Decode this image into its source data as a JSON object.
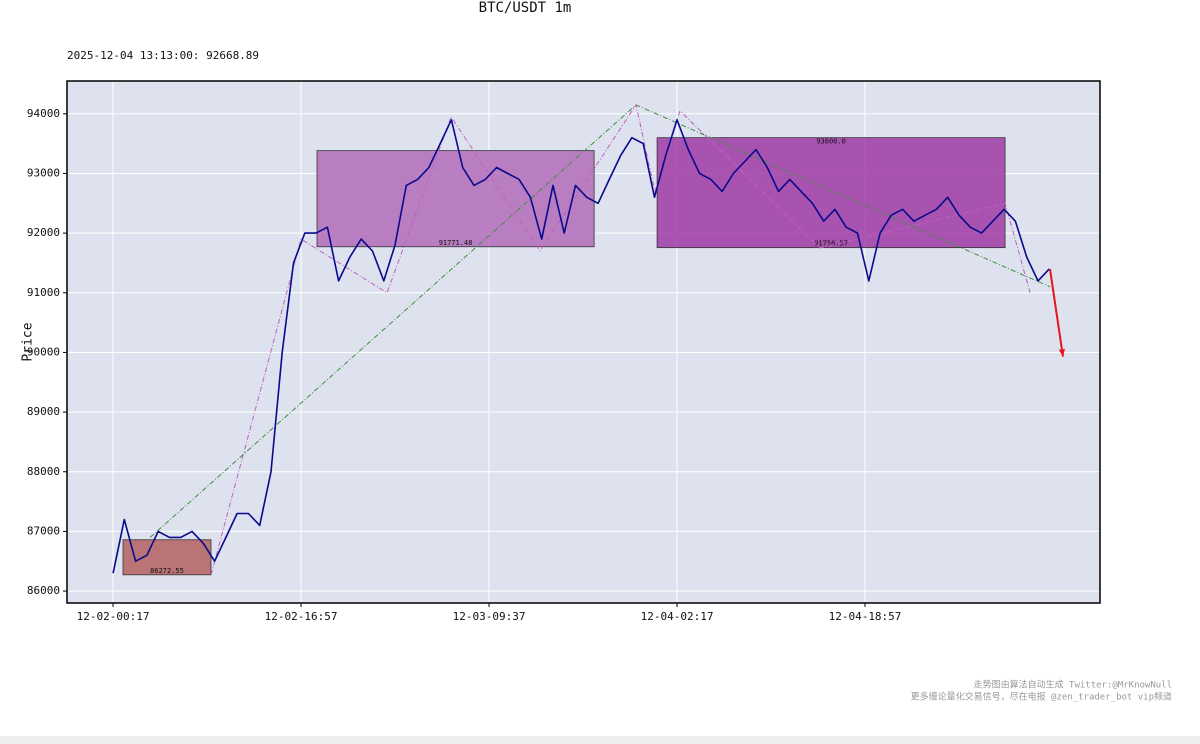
{
  "chart_data": {
    "type": "line",
    "title": "BTC/USDT 1m",
    "subtitle": "2025-12-04 13:13:00: 92668.89",
    "ylabel": "Price",
    "annotations": [
      "走势图由算法自动生成  Twitter:@MrKnowNull",
      "更多缠论量化交易信号，尽在电报 @zen_trader_bot vip频道"
    ],
    "xlim": [
      "12-01-20:12",
      "12-05-15:47"
    ],
    "xticks": [
      "12-02-00:17",
      "12-02-16:57",
      "12-03-09:37",
      "12-04-02:17",
      "12-04-18:57"
    ],
    "ylim": [
      85800,
      94550
    ],
    "yticks": [
      86000,
      87000,
      88000,
      89000,
      90000,
      91000,
      92000,
      93000,
      94000
    ],
    "grid": true,
    "x": [
      "12-02-00:17",
      "12-02-01:17",
      "12-02-02:17",
      "12-02-03:17",
      "12-02-04:17",
      "12-02-05:17",
      "12-02-06:17",
      "12-02-07:17",
      "12-02-08:17",
      "12-02-09:17",
      "12-02-10:17",
      "12-02-11:17",
      "12-02-12:17",
      "12-02-13:17",
      "12-02-14:17",
      "12-02-15:17",
      "12-02-16:17",
      "12-02-17:17",
      "12-02-18:17",
      "12-02-19:17",
      "12-02-20:17",
      "12-02-21:17",
      "12-02-22:17",
      "12-02-23:17",
      "12-03-00:17",
      "12-03-01:17",
      "12-03-02:17",
      "12-03-03:17",
      "12-03-04:17",
      "12-03-05:17",
      "12-03-06:17",
      "12-03-07:17",
      "12-03-08:17",
      "12-03-09:17",
      "12-03-10:17",
      "12-03-11:17",
      "12-03-12:17",
      "12-03-13:17",
      "12-03-14:17",
      "12-03-15:17",
      "12-03-16:17",
      "12-03-17:17",
      "12-03-18:17",
      "12-03-19:17",
      "12-03-20:17",
      "12-03-21:17",
      "12-03-22:17",
      "12-03-23:17",
      "12-04-00:17",
      "12-04-01:17",
      "12-04-02:17",
      "12-04-03:17",
      "12-04-04:17",
      "12-04-05:17",
      "12-04-06:17",
      "12-04-07:17",
      "12-04-08:17",
      "12-04-09:17",
      "12-04-10:17",
      "12-04-11:17",
      "12-04-12:17",
      "12-04-13:17",
      "12-04-14:17",
      "12-04-15:17",
      "12-04-16:17",
      "12-04-17:17",
      "12-04-18:17",
      "12-04-19:17",
      "12-04-20:17",
      "12-04-21:17",
      "12-04-22:17",
      "12-04-23:17",
      "12-05-00:17",
      "12-05-01:17",
      "12-05-02:17",
      "12-05-03:17",
      "12-05-04:17",
      "12-05-05:17",
      "12-05-06:17",
      "12-05-07:17",
      "12-05-08:17",
      "12-05-09:17",
      "12-05-10:17",
      "12-05-11:17"
    ],
    "series": [
      {
        "color": "#0a0a8c",
        "values": [
          86300,
          87200,
          86500,
          86600,
          87000,
          86900,
          86900,
          87000,
          86800,
          86500,
          86900,
          87300,
          87300,
          87100,
          88000,
          90000,
          91500,
          92000,
          92000,
          92100,
          91200,
          91600,
          91900,
          91700,
          91200,
          91800,
          92800,
          92900,
          93100,
          93500,
          93900,
          93100,
          92800,
          92900,
          93100,
          93000,
          92900,
          92600,
          91900,
          92800,
          92000,
          92800,
          92600,
          92500,
          92900,
          93300,
          93600,
          93500,
          92600,
          93300,
          93900,
          93400,
          93000,
          92900,
          92700,
          93000,
          93200,
          93400,
          93100,
          92700,
          92900,
          92700,
          92500,
          92200,
          92400,
          92100,
          92000,
          91200,
          92000,
          92300,
          92400,
          92200,
          92300,
          92400,
          92600,
          92300,
          92100,
          92000,
          92200,
          92400,
          92200,
          91600,
          91200,
          91400
        ]
      }
    ],
    "zones": [
      {
        "x": [
          "12-02-01:10",
          "12-02-08:58"
        ],
        "values": [
          86272.55,
          86860
        ],
        "color": "#b5605f",
        "value_labels": [
          "86272.55",
          null
        ]
      },
      {
        "x": [
          "12-02-18:22",
          "12-03-18:56"
        ],
        "values": [
          91771.48,
          93383
        ],
        "color": "#b36bb8",
        "value_labels": [
          "91771.48",
          null
        ]
      },
      {
        "x": [
          "12-04-00:31",
          "12-05-07:22"
        ],
        "values": [
          91756.57,
          93600.0
        ],
        "color": "#a03aa6",
        "value_labels": [
          "91756.57",
          "93600.0"
        ]
      }
    ],
    "lines": [
      {
        "color": "#3f8f3f",
        "x": [
          "12-02-03:34",
          "12-03-22:39",
          "12-05-11:21"
        ],
        "values": [
          86900,
          94150,
          91100
        ]
      },
      {
        "color": "#c060c0",
        "x": [
          "12-02-08:58",
          "12-02-16:57",
          "12-03-00:34",
          "12-03-06:15",
          "12-03-14:08",
          "12-03-22:39",
          "12-04-00:20",
          "12-04-02:33",
          "12-04-14:58",
          "12-05-07:22",
          "12-05-09:35"
        ],
        "values": [
          86270,
          91900,
          91000,
          93950,
          91700,
          94150,
          92700,
          94050,
          91750,
          92500,
          91000
        ]
      }
    ],
    "arrow": {
      "color": "#e8141e",
      "x": [
        "12-05-11:21",
        "12-05-12:30"
      ],
      "values": [
        91400,
        89930
      ]
    }
  }
}
